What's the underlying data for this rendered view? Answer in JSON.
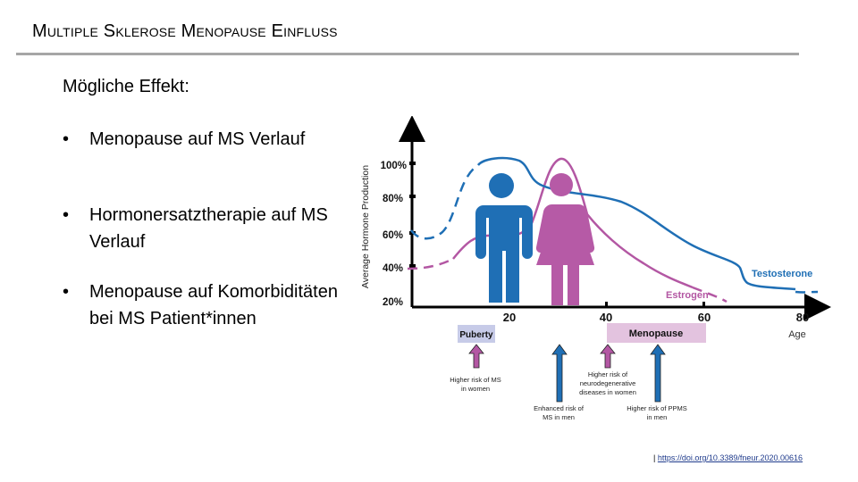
{
  "slide": {
    "title": "Multiple Sklerose Menopause Einfluss",
    "intro": "Mögliche Effekt:",
    "bullets": [
      "Menopause auf MS Verlauf",
      "Hormonersatztherapie auf MS Verlauf",
      "Menopause auf Komorbiditäten bei MS Patient*innen"
    ],
    "bullet_symbol": "•",
    "source_prefix": "|",
    "source_link": "https://doi.org/10.3389/fneur.2020.00616"
  },
  "figure": {
    "y_axis_label": "Average Hormone Production",
    "y_ticks": [
      "100%",
      "80%",
      "60%",
      "40%",
      "20%"
    ],
    "x_ticks": [
      "20",
      "40",
      "60",
      "80"
    ],
    "x_axis_label": "Age",
    "series_labels": {
      "testosterone": "Testosterone",
      "estrogen": "Estrogen"
    },
    "phases": {
      "puberty": "Puberty",
      "menopause": "Menopause"
    },
    "annotations": {
      "women_ms_risk": [
        "Higher risk of MS",
        "in women"
      ],
      "men_ms_risk": [
        "Enhanced risk of",
        "MS in men"
      ],
      "women_neuro_risk": [
        "Higher risk of",
        "neurodegenerative",
        "diseases in women"
      ],
      "men_ppms_risk": [
        "Higher risk of PPMS",
        "in men"
      ]
    },
    "colors": {
      "testosterone": "#1f6fb5",
      "estrogen": "#b357a3",
      "puberty_box": "#c7cbe8",
      "menopause_box": "#e3c3df",
      "male_figure": "#1f6fb5",
      "female_figure": "#b65aa6",
      "male_arrow": "#1f6fb5",
      "female_arrow": "#b357a3"
    },
    "icons": {
      "male": "male-person-icon",
      "female": "female-person-icon"
    }
  }
}
